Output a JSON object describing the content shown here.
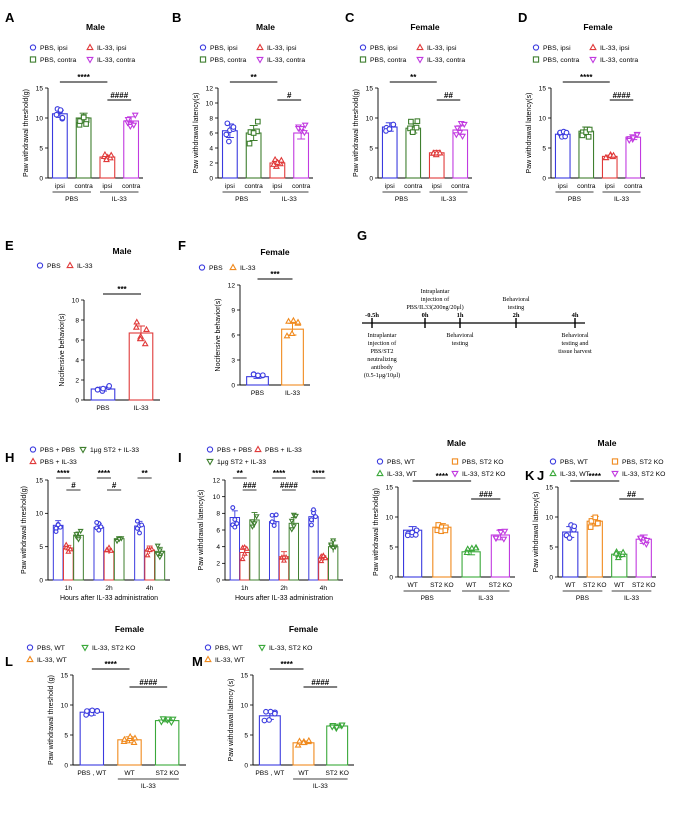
{
  "panels": [
    {
      "id": "A",
      "title": "Male",
      "ylabel": "Paw withdrawal threshold(g)",
      "ymax": 15,
      "ticks": [
        0,
        5,
        10,
        15
      ],
      "legend": [
        "PBS, ipsi",
        "IL-33, ipsi",
        "PBS, contra",
        "IL-33, contra"
      ],
      "groups": [
        {
          "name": "ipsi",
          "color": "#3a3adf",
          "marker": "circle",
          "mean": 10.7,
          "sem": 0.6
        },
        {
          "name": "contra",
          "color": "#3f7f2f",
          "marker": "square",
          "mean": 10.0,
          "sem": 0.8
        },
        {
          "name": "ipsi",
          "color": "#e03a3a",
          "marker": "triangle",
          "mean": 3.5,
          "sem": 0.3
        },
        {
          "name": "contra",
          "color": "#c13ae0",
          "marker": "vtriangle",
          "mean": 9.5,
          "sem": 0.7
        }
      ],
      "brackets": [
        "PBS",
        "IL-33"
      ],
      "sig": [
        {
          "a": 0,
          "b": 2,
          "text": "****"
        },
        {
          "a": 2,
          "b": 3,
          "text": "####"
        }
      ]
    },
    {
      "id": "B",
      "title": "Male",
      "ylabel": "Paw withdrawal latency(s)",
      "ymax": 12,
      "ticks": [
        0,
        2,
        4,
        6,
        8,
        10,
        12
      ],
      "legend": [
        "PBS, ipsi",
        "IL-33, ipsi",
        "PBS, contra",
        "IL-33, contra"
      ],
      "groups": [
        {
          "name": "ipsi",
          "color": "#3a3adf",
          "marker": "circle",
          "mean": 6.3,
          "sem": 0.9
        },
        {
          "name": "contra",
          "color": "#3f7f2f",
          "marker": "square",
          "mean": 6.0,
          "sem": 1.0
        },
        {
          "name": "ipsi",
          "color": "#e03a3a",
          "marker": "triangle",
          "mean": 2.0,
          "sem": 0.3
        },
        {
          "name": "contra",
          "color": "#c13ae0",
          "marker": "vtriangle",
          "mean": 6.0,
          "sem": 0.8
        }
      ],
      "brackets": [
        "PBS",
        "IL-33"
      ],
      "sig": [
        {
          "a": 0,
          "b": 2,
          "text": "**"
        },
        {
          "a": 2,
          "b": 3,
          "text": "#"
        }
      ]
    },
    {
      "id": "C",
      "title": "Female",
      "ylabel": "Paw withdrawal threshold(g)",
      "ymax": 15,
      "ticks": [
        0,
        5,
        10,
        15
      ],
      "legend": [
        "PBS, ipsi",
        "IL-33, ipsi",
        "PBS, contra",
        "IL-33, contra"
      ],
      "groups": [
        {
          "name": "ipsi",
          "color": "#3a3adf",
          "marker": "circle",
          "mean": 8.5,
          "sem": 0.7
        },
        {
          "name": "contra",
          "color": "#3f7f2f",
          "marker": "square",
          "mean": 8.3,
          "sem": 0.8
        },
        {
          "name": "ipsi",
          "color": "#e03a3a",
          "marker": "triangle",
          "mean": 4.2,
          "sem": 0.4
        },
        {
          "name": "contra",
          "color": "#c13ae0",
          "marker": "vtriangle",
          "mean": 8.0,
          "sem": 0.7
        }
      ],
      "brackets": [
        "PBS",
        "IL-33"
      ],
      "sig": [
        {
          "a": 0,
          "b": 2,
          "text": "**"
        },
        {
          "a": 2,
          "b": 3,
          "text": "##"
        }
      ]
    },
    {
      "id": "D",
      "title": "Female",
      "ylabel": "Paw withdrawal latency(s)",
      "ymax": 15,
      "ticks": [
        0,
        5,
        10,
        15
      ],
      "legend": [
        "PBS, ipsi",
        "IL-33, ipsi",
        "PBS, contra",
        "IL-33, contra"
      ],
      "groups": [
        {
          "name": "ipsi",
          "color": "#3a3adf",
          "marker": "circle",
          "mean": 7.3,
          "sem": 0.3
        },
        {
          "name": "contra",
          "color": "#3f7f2f",
          "marker": "square",
          "mean": 7.8,
          "sem": 0.7
        },
        {
          "name": "ipsi",
          "color": "#e03a3a",
          "marker": "triangle",
          "mean": 3.6,
          "sem": 0.2
        },
        {
          "name": "contra",
          "color": "#c13ae0",
          "marker": "vtriangle",
          "mean": 6.8,
          "sem": 0.4
        }
      ],
      "brackets": [
        "PBS",
        "IL-33"
      ],
      "sig": [
        {
          "a": 0,
          "b": 2,
          "text": "****"
        },
        {
          "a": 2,
          "b": 3,
          "text": "####"
        }
      ]
    },
    {
      "id": "E",
      "title": "Male",
      "ylabel": "Nocifensive behavior(s)",
      "ymax": 10,
      "ticks": [
        0,
        2,
        4,
        6,
        8,
        10
      ],
      "legend": [
        "PBS",
        "IL-33"
      ],
      "groups": [
        {
          "name": "PBS",
          "color": "#3a3adf",
          "marker": "circle",
          "mean": 1.1,
          "sem": 0.2
        },
        {
          "name": "IL-33",
          "color": "#e03a3a",
          "marker": "triangle",
          "mean": 6.7,
          "sem": 0.7
        }
      ],
      "sig": [
        {
          "a": 0,
          "b": 1,
          "text": "***"
        }
      ]
    },
    {
      "id": "F",
      "title": "Female",
      "ylabel": "Nocifensive behavior(s)",
      "ymax": 12,
      "ticks": [
        0,
        3,
        6,
        9,
        12
      ],
      "legend": [
        "PBS",
        "IL-33"
      ],
      "groups": [
        {
          "name": "PBS",
          "color": "#3a3adf",
          "marker": "circle",
          "mean": 1.0,
          "sem": 0.2
        },
        {
          "name": "IL-33",
          "color": "#f08a1e",
          "marker": "triangle",
          "mean": 6.7,
          "sem": 0.7
        }
      ],
      "sig": [
        {
          "a": 0,
          "b": 1,
          "text": "***"
        }
      ]
    },
    {
      "id": "J",
      "title": "Male",
      "ylabel": "Paw withdrawal threshold(g)",
      "ymax": 15,
      "ticks": [
        0,
        5,
        10,
        15
      ],
      "legend": [
        "PBS, WT",
        "PBS, ST2 KO",
        "IL-33, WT",
        "IL-33, ST2 KO"
      ],
      "groups": [
        {
          "name": "WT",
          "color": "#3a3adf",
          "marker": "circle",
          "mean": 7.8,
          "sem": 0.6
        },
        {
          "name": "ST2 KO",
          "color": "#f08a1e",
          "marker": "square",
          "mean": 8.3,
          "sem": 0.6
        },
        {
          "name": "WT",
          "color": "#3aa83a",
          "marker": "triangle",
          "mean": 4.2,
          "sem": 0.5
        },
        {
          "name": "ST2 KO",
          "color": "#c13ae0",
          "marker": "vtriangle",
          "mean": 7.0,
          "sem": 0.8
        }
      ],
      "brackets": [
        "PBS",
        "IL-33"
      ],
      "sig": [
        {
          "a": 0,
          "b": 2,
          "text": "****"
        },
        {
          "a": 2,
          "b": 3,
          "text": "###"
        }
      ]
    },
    {
      "id": "K",
      "title": "Male",
      "ylabel": "Paw withdrawal latency(s)",
      "ymax": 15,
      "ticks": [
        0,
        5,
        10,
        15
      ],
      "legend": [
        "PBS, WT",
        "PBS, ST2 KO",
        "IL-33, WT",
        "IL-33, ST2 KO"
      ],
      "groups": [
        {
          "name": "WT",
          "color": "#3a3adf",
          "marker": "circle",
          "mean": 7.5,
          "sem": 0.9
        },
        {
          "name": "ST2 KO",
          "color": "#f08a1e",
          "marker": "square",
          "mean": 9.3,
          "sem": 0.8
        },
        {
          "name": "WT",
          "color": "#3aa83a",
          "marker": "triangle",
          "mean": 3.8,
          "sem": 0.4
        },
        {
          "name": "ST2 KO",
          "color": "#c13ae0",
          "marker": "vtriangle",
          "mean": 6.3,
          "sem": 0.7
        }
      ],
      "brackets": [
        "PBS",
        "IL-33"
      ],
      "sig": [
        {
          "a": 0,
          "b": 2,
          "text": "****"
        },
        {
          "a": 2,
          "b": 3,
          "text": "##"
        }
      ]
    },
    {
      "id": "L",
      "title": "Female",
      "ylabel": "Paw withdrawal threshold (g)",
      "ymax": 15,
      "ticks": [
        0,
        5,
        10,
        15
      ],
      "legend": [
        "PBS, WT",
        "IL-33, ST2 KO",
        "IL-33, WT"
      ],
      "groups": [
        {
          "name": "PBS , WT",
          "color": "#3a3adf",
          "marker": "circle",
          "mean": 8.8,
          "sem": 0.5
        },
        {
          "name": "WT",
          "color": "#f08a1e",
          "marker": "triangle",
          "mean": 4.2,
          "sem": 0.5
        },
        {
          "name": "ST2 KO",
          "color": "#3aa83a",
          "marker": "vtriangle",
          "mean": 7.4,
          "sem": 0.2
        }
      ],
      "brackets": [
        null,
        "IL-33"
      ],
      "sig": [
        {
          "a": 0,
          "b": 1,
          "text": "****"
        },
        {
          "a": 1,
          "b": 2,
          "text": "####"
        }
      ]
    },
    {
      "id": "M",
      "title": "Female",
      "ylabel": "Paw withdrawal latency (s)",
      "ymax": 15,
      "ticks": [
        0,
        5,
        10,
        15
      ],
      "legend": [
        "PBS, WT",
        "IL-33, ST2 KO",
        "IL-33, WT"
      ],
      "groups": [
        {
          "name": "PBS , WT",
          "color": "#3a3adf",
          "marker": "circle",
          "mean": 8.2,
          "sem": 0.6
        },
        {
          "name": "WT",
          "color": "#f08a1e",
          "marker": "triangle",
          "mean": 3.7,
          "sem": 0.3
        },
        {
          "name": "ST2 KO",
          "color": "#3aa83a",
          "marker": "vtriangle",
          "mean": 6.5,
          "sem": 0.3
        }
      ],
      "brackets": [
        null,
        "IL-33"
      ],
      "sig": [
        {
          "a": 0,
          "b": 1,
          "text": "****"
        },
        {
          "a": 1,
          "b": 2,
          "text": "####"
        }
      ]
    }
  ],
  "timecourse": [
    {
      "id": "H",
      "ylabel": "Paw withdrawal threshold(g)",
      "xlabel": "Hours after IL-33 administration",
      "ymax": 15,
      "ticks": [
        0,
        5,
        10,
        15
      ],
      "categories": [
        "1h",
        "2h",
        "4h"
      ],
      "legend": [
        "PBS + PBS",
        "1μg ST2 + IL-33",
        "PBS + IL-33"
      ],
      "series": [
        {
          "name": "PBS + PBS",
          "color": "#3a3adf",
          "marker": "circle",
          "values": [
            8.2,
            7.9,
            8.1
          ],
          "sem": [
            0.7,
            0.6,
            0.7
          ]
        },
        {
          "name": "PBS + IL-33",
          "color": "#e03a3a",
          "marker": "triangle",
          "values": [
            4.8,
            4.3,
            4.5
          ],
          "sem": [
            0.4,
            0.4,
            0.6
          ]
        },
        {
          "name": "1μg ST2 + IL-33",
          "color": "#3f7f2f",
          "marker": "vtriangle",
          "values": [
            6.7,
            6.2,
            4.3
          ],
          "sem": [
            0.5,
            0.3,
            0.6
          ]
        }
      ],
      "sig": [
        {
          "cat": 0,
          "a": 0,
          "b": 1,
          "text": "****"
        },
        {
          "cat": 0,
          "a": 1,
          "b": 2,
          "text": "#"
        },
        {
          "cat": 1,
          "a": 0,
          "b": 1,
          "text": "****"
        },
        {
          "cat": 1,
          "a": 1,
          "b": 2,
          "text": "#"
        },
        {
          "cat": 2,
          "a": 0,
          "b": 1,
          "text": "**"
        }
      ]
    },
    {
      "id": "I",
      "ylabel": "Paw withdrawal latency(s)",
      "xlabel": "Hours after IL-33 administration",
      "ymax": 12,
      "ticks": [
        0,
        2,
        4,
        6,
        8,
        10,
        12
      ],
      "categories": [
        "1h",
        "2h",
        "4h"
      ],
      "legend": [
        "PBS + PBS",
        "PBS + IL-33",
        "1μg ST2 + IL-33"
      ],
      "series": [
        {
          "name": "PBS + PBS",
          "color": "#3a3adf",
          "marker": "circle",
          "values": [
            7.5,
            7.0,
            7.6
          ],
          "sem": [
            0.8,
            0.6,
            0.7
          ]
        },
        {
          "name": "PBS + IL-33",
          "color": "#e03a3a",
          "marker": "triangle",
          "values": [
            3.3,
            2.8,
            2.6
          ],
          "sem": [
            0.6,
            0.6,
            0.3
          ]
        },
        {
          "name": "1μg ST2 + IL-33",
          "color": "#3f7f2f",
          "marker": "vtriangle",
          "values": [
            7.2,
            6.8,
            4.0
          ],
          "sem": [
            0.9,
            0.7,
            0.7
          ]
        }
      ],
      "sig": [
        {
          "cat": 0,
          "a": 0,
          "b": 1,
          "text": "**"
        },
        {
          "cat": 0,
          "a": 1,
          "b": 2,
          "text": "###"
        },
        {
          "cat": 1,
          "a": 0,
          "b": 1,
          "text": "****"
        },
        {
          "cat": 1,
          "a": 1,
          "b": 2,
          "text": "####"
        },
        {
          "cat": 2,
          "a": 0,
          "b": 1,
          "text": "****"
        }
      ]
    }
  ],
  "timeline": {
    "id": "G",
    "points": [
      {
        "label": "-0.5h",
        "bottom": "Intraplantar injection of PBS/ST2 neutralizing antibody (0.5-1μg/10μl)"
      },
      {
        "label": "0h",
        "top": "Intraplantar injection of PBS/IL33(200ng/20μl)"
      },
      {
        "label": "1h",
        "bottom": "Behavioral testing"
      },
      {
        "label": "2h",
        "top": "Behavioral testing"
      },
      {
        "label": "4h",
        "bottom": "Behavioral testing and tissue harvest"
      }
    ]
  },
  "chart_data": [
    {
      "type": "bar",
      "panel": "A",
      "title": "Male",
      "ylabel": "Paw withdrawal threshold(g)",
      "categories": [
        "PBS ipsi",
        "PBS contra",
        "IL-33 ipsi",
        "IL-33 contra"
      ],
      "values": [
        10.7,
        10.0,
        3.5,
        9.5
      ],
      "ylim": [
        0,
        15
      ]
    },
    {
      "type": "bar",
      "panel": "B",
      "title": "Male",
      "ylabel": "Paw withdrawal latency(s)",
      "categories": [
        "PBS ipsi",
        "PBS contra",
        "IL-33 ipsi",
        "IL-33 contra"
      ],
      "values": [
        6.3,
        6.0,
        2.0,
        6.0
      ],
      "ylim": [
        0,
        12
      ]
    },
    {
      "type": "bar",
      "panel": "C",
      "title": "Female",
      "ylabel": "Paw withdrawal threshold(g)",
      "categories": [
        "PBS ipsi",
        "PBS contra",
        "IL-33 ipsi",
        "IL-33 contra"
      ],
      "values": [
        8.5,
        8.3,
        4.2,
        8.0
      ],
      "ylim": [
        0,
        15
      ]
    },
    {
      "type": "bar",
      "panel": "D",
      "title": "Female",
      "ylabel": "Paw withdrawal latency(s)",
      "categories": [
        "PBS ipsi",
        "PBS contra",
        "IL-33 ipsi",
        "IL-33 contra"
      ],
      "values": [
        7.3,
        7.8,
        3.6,
        6.8
      ],
      "ylim": [
        0,
        15
      ]
    },
    {
      "type": "bar",
      "panel": "E",
      "title": "Male",
      "ylabel": "Nocifensive behavior(s)",
      "categories": [
        "PBS",
        "IL-33"
      ],
      "values": [
        1.1,
        6.7
      ],
      "ylim": [
        0,
        10
      ]
    },
    {
      "type": "bar",
      "panel": "F",
      "title": "Female",
      "ylabel": "Nocifensive behavior(s)",
      "categories": [
        "PBS",
        "IL-33"
      ],
      "values": [
        1.0,
        6.7
      ],
      "ylim": [
        0,
        12
      ]
    },
    {
      "type": "bar",
      "panel": "H",
      "ylabel": "Paw withdrawal threshold(g)",
      "xlabel": "Hours after IL-33 administration",
      "categories": [
        "1h",
        "2h",
        "4h"
      ],
      "series": [
        {
          "name": "PBS + PBS",
          "values": [
            8.2,
            7.9,
            8.1
          ]
        },
        {
          "name": "PBS + IL-33",
          "values": [
            4.8,
            4.3,
            4.5
          ]
        },
        {
          "name": "1μg ST2 + IL-33",
          "values": [
            6.7,
            6.2,
            4.3
          ]
        }
      ],
      "ylim": [
        0,
        15
      ]
    },
    {
      "type": "bar",
      "panel": "I",
      "ylabel": "Paw withdrawal latency(s)",
      "xlabel": "Hours after IL-33 administration",
      "categories": [
        "1h",
        "2h",
        "4h"
      ],
      "series": [
        {
          "name": "PBS + PBS",
          "values": [
            7.5,
            7.0,
            7.6
          ]
        },
        {
          "name": "PBS + IL-33",
          "values": [
            3.3,
            2.8,
            2.6
          ]
        },
        {
          "name": "1μg ST2 + IL-33",
          "values": [
            7.2,
            6.8,
            4.0
          ]
        }
      ],
      "ylim": [
        0,
        12
      ]
    },
    {
      "type": "bar",
      "panel": "J",
      "title": "Male",
      "ylabel": "Paw withdrawal threshold(g)",
      "categories": [
        "PBS WT",
        "PBS ST2 KO",
        "IL-33 WT",
        "IL-33 ST2 KO"
      ],
      "values": [
        7.8,
        8.3,
        4.2,
        7.0
      ],
      "ylim": [
        0,
        15
      ]
    },
    {
      "type": "bar",
      "panel": "K",
      "title": "Male",
      "ylabel": "Paw withdrawal latency(s)",
      "categories": [
        "PBS WT",
        "PBS ST2 KO",
        "IL-33 WT",
        "IL-33 ST2 KO"
      ],
      "values": [
        7.5,
        9.3,
        3.8,
        6.3
      ],
      "ylim": [
        0,
        15
      ]
    },
    {
      "type": "bar",
      "panel": "L",
      "title": "Female",
      "ylabel": "Paw withdrawal threshold (g)",
      "categories": [
        "PBS , WT",
        "IL-33 WT",
        "IL-33 ST2 KO"
      ],
      "values": [
        8.8,
        4.2,
        7.4
      ],
      "ylim": [
        0,
        15
      ]
    },
    {
      "type": "bar",
      "panel": "M",
      "title": "Female",
      "ylabel": "Paw withdrawal latency (s)",
      "categories": [
        "PBS , WT",
        "IL-33 WT",
        "IL-33 ST2 KO"
      ],
      "values": [
        8.2,
        3.7,
        6.5
      ],
      "ylim": [
        0,
        15
      ]
    }
  ]
}
